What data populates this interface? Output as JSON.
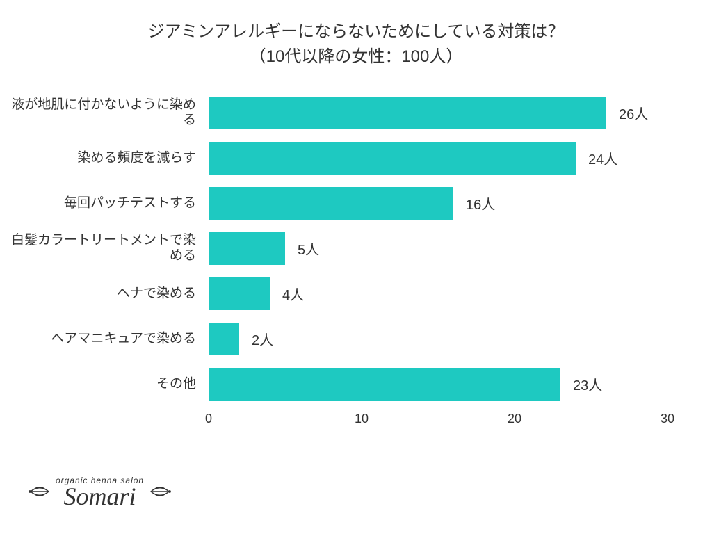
{
  "title_line1": "ジアミンアレルギーにならないためにしている対策は？",
  "title_line2": "（10代以降の女性：100人）",
  "title_fontsize": 24,
  "title_color": "#333333",
  "chart": {
    "type": "bar",
    "orientation": "horizontal",
    "background_color": "#ffffff",
    "bar_color": "#1ec9c1",
    "grid_color": "#bdbdbd",
    "text_color": "#333333",
    "label_fontsize": 19,
    "value_fontsize": 20,
    "value_suffix": "人",
    "xlim": [
      0,
      30
    ],
    "xtick_step": 10,
    "xticks": [
      0,
      10,
      20,
      30
    ],
    "bar_width_ratio": 0.72,
    "categories": [
      "液が地肌に付かないように染める",
      "染める頻度を減らす",
      "毎回パッチテストする",
      "白髪カラートリートメントで染める",
      "ヘナで染める",
      "ヘアマニキュアで染める",
      "その他"
    ],
    "values": [
      26,
      24,
      16,
      5,
      4,
      2,
      23
    ]
  },
  "logo": {
    "small_text": "organic henna salon",
    "main_text": "Somari"
  }
}
